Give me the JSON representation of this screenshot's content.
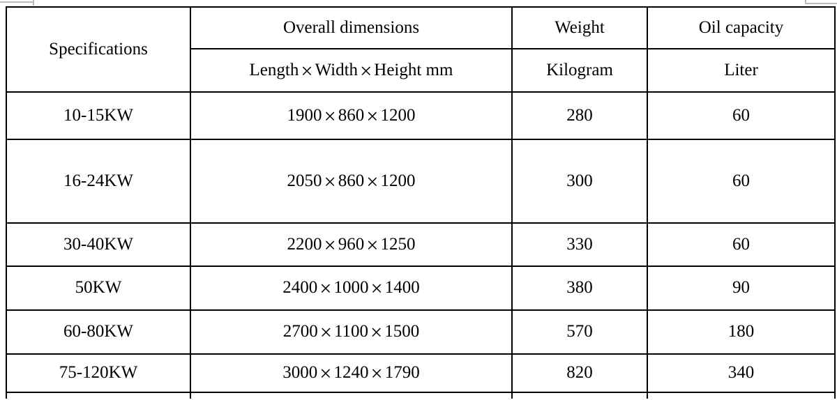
{
  "table": {
    "header": {
      "specifications": "Specifications",
      "overall_dimensions": "Overall dimensions",
      "dimensions_unit": "Length×Width×Height mm",
      "weight": "Weight",
      "weight_unit": "Kilogram",
      "oil_capacity": "Oil capacity",
      "oil_unit": "Liter"
    },
    "rows": [
      {
        "spec": "10-15KW",
        "dimensions": "1900×860×1200",
        "weight": "280",
        "oil": "60"
      },
      {
        "spec": "16-24KW",
        "dimensions": "2050×860×1200",
        "weight": "300",
        "oil": "60"
      },
      {
        "spec": "30-40KW",
        "dimensions": "2200×960×1250",
        "weight": "330",
        "oil": "60"
      },
      {
        "spec": "50KW",
        "dimensions": "2400×1000×1400",
        "weight": "380",
        "oil": "90"
      },
      {
        "spec": "60-80KW",
        "dimensions": "2700×1100×1500",
        "weight": "570",
        "oil": "180"
      },
      {
        "spec": "75-120KW",
        "dimensions": "3000×1240×1790",
        "weight": "820",
        "oil": "340"
      }
    ]
  },
  "colors": {
    "border": "#000000",
    "text": "#000000",
    "background": "#ffffff",
    "artifact_gray": "#b9b9b9"
  }
}
